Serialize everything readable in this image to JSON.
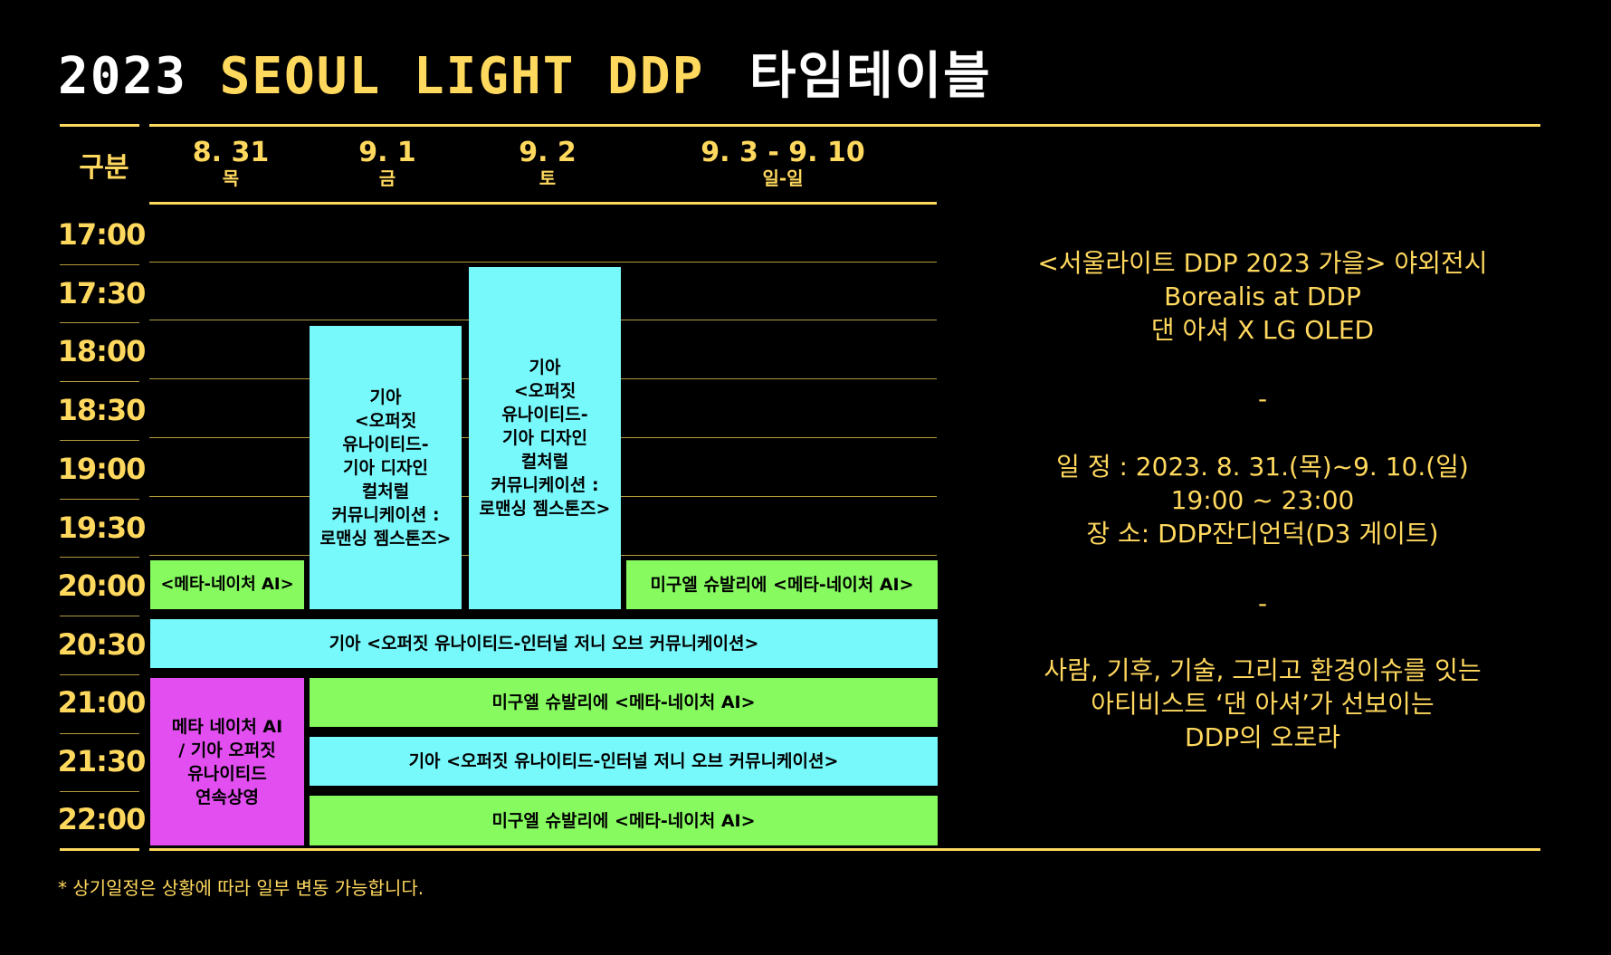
{
  "title": {
    "part1": "2023",
    "part2": "SEOUL LIGHT DDP",
    "part3": "타임테이블"
  },
  "header": {
    "label": "구분",
    "days": [
      {
        "date": "8. 31",
        "weekday": "목"
      },
      {
        "date": "9. 1",
        "weekday": "금"
      },
      {
        "date": "9. 2",
        "weekday": "토"
      },
      {
        "date": "9. 3 - 9. 10",
        "weekday": "일-일"
      }
    ]
  },
  "times": [
    "17:00",
    "17:30",
    "18:00",
    "18:30",
    "19:00",
    "19:30",
    "20:00",
    "20:30",
    "21:00",
    "21:30",
    "22:00"
  ],
  "blocks": {
    "sep1_opposite": "기아\n<오퍼짓\n유나이티드-\n기아 디자인\n컬처럴\n커뮤니케이션 :\n로맨싱 젬스톤즈>",
    "sep2_opposite": "기아\n<오퍼짓\n유나이티드-\n기아 디자인\n컬처럴\n커뮤니케이션 :\n로맨싱 젬스톤즈>",
    "aug31_meta": "<메타-네이처 AI>",
    "sep3_meta": "미구엘 슈발리에 <메타-네이처 AI>",
    "row2030_kia": "기아 <오퍼짓 유나이티드-인터널 저니 오브 커뮤니케이션>",
    "aug31_continuous": "메타 네이처 AI\n/ 기아 오퍼짓\n유나이티드\n연속상영",
    "row2100_meta": "미구엘 슈발리에 <메타-네이처 AI>",
    "row2130_kia": "기아 <오퍼짓 유나이티드-인터널 저니 오브 커뮤니케이션>",
    "row2200_meta": "미구엘 슈발리에 <메타-네이처 AI>"
  },
  "info": {
    "lines1": [
      "<서울라이트 DDP 2023 가을> 야외전시",
      "Borealis at DDP",
      "댄 아셔 X LG OLED"
    ],
    "sep1": "-",
    "lines2": [
      "일 정 : 2023. 8. 31.(목)~9. 10.(일)",
      "19:00 ~ 23:00",
      "장 소: DDP잔디언덕(D3 게이트)"
    ],
    "sep2": "-",
    "lines3": [
      "사람, 기후, 기술, 그리고 환경이슈를 잇는",
      "아티비스트 ‘댄 아셔’가 선보이는",
      "DDP의 오로라"
    ]
  },
  "footnote": "* 상기일정은 상황에 따라 일부 변동 가능합니다.",
  "colors": {
    "accent": "#ffd85e",
    "cyan": "#77f8fb",
    "green": "#86fa5f",
    "pink": "#e24ef0"
  }
}
